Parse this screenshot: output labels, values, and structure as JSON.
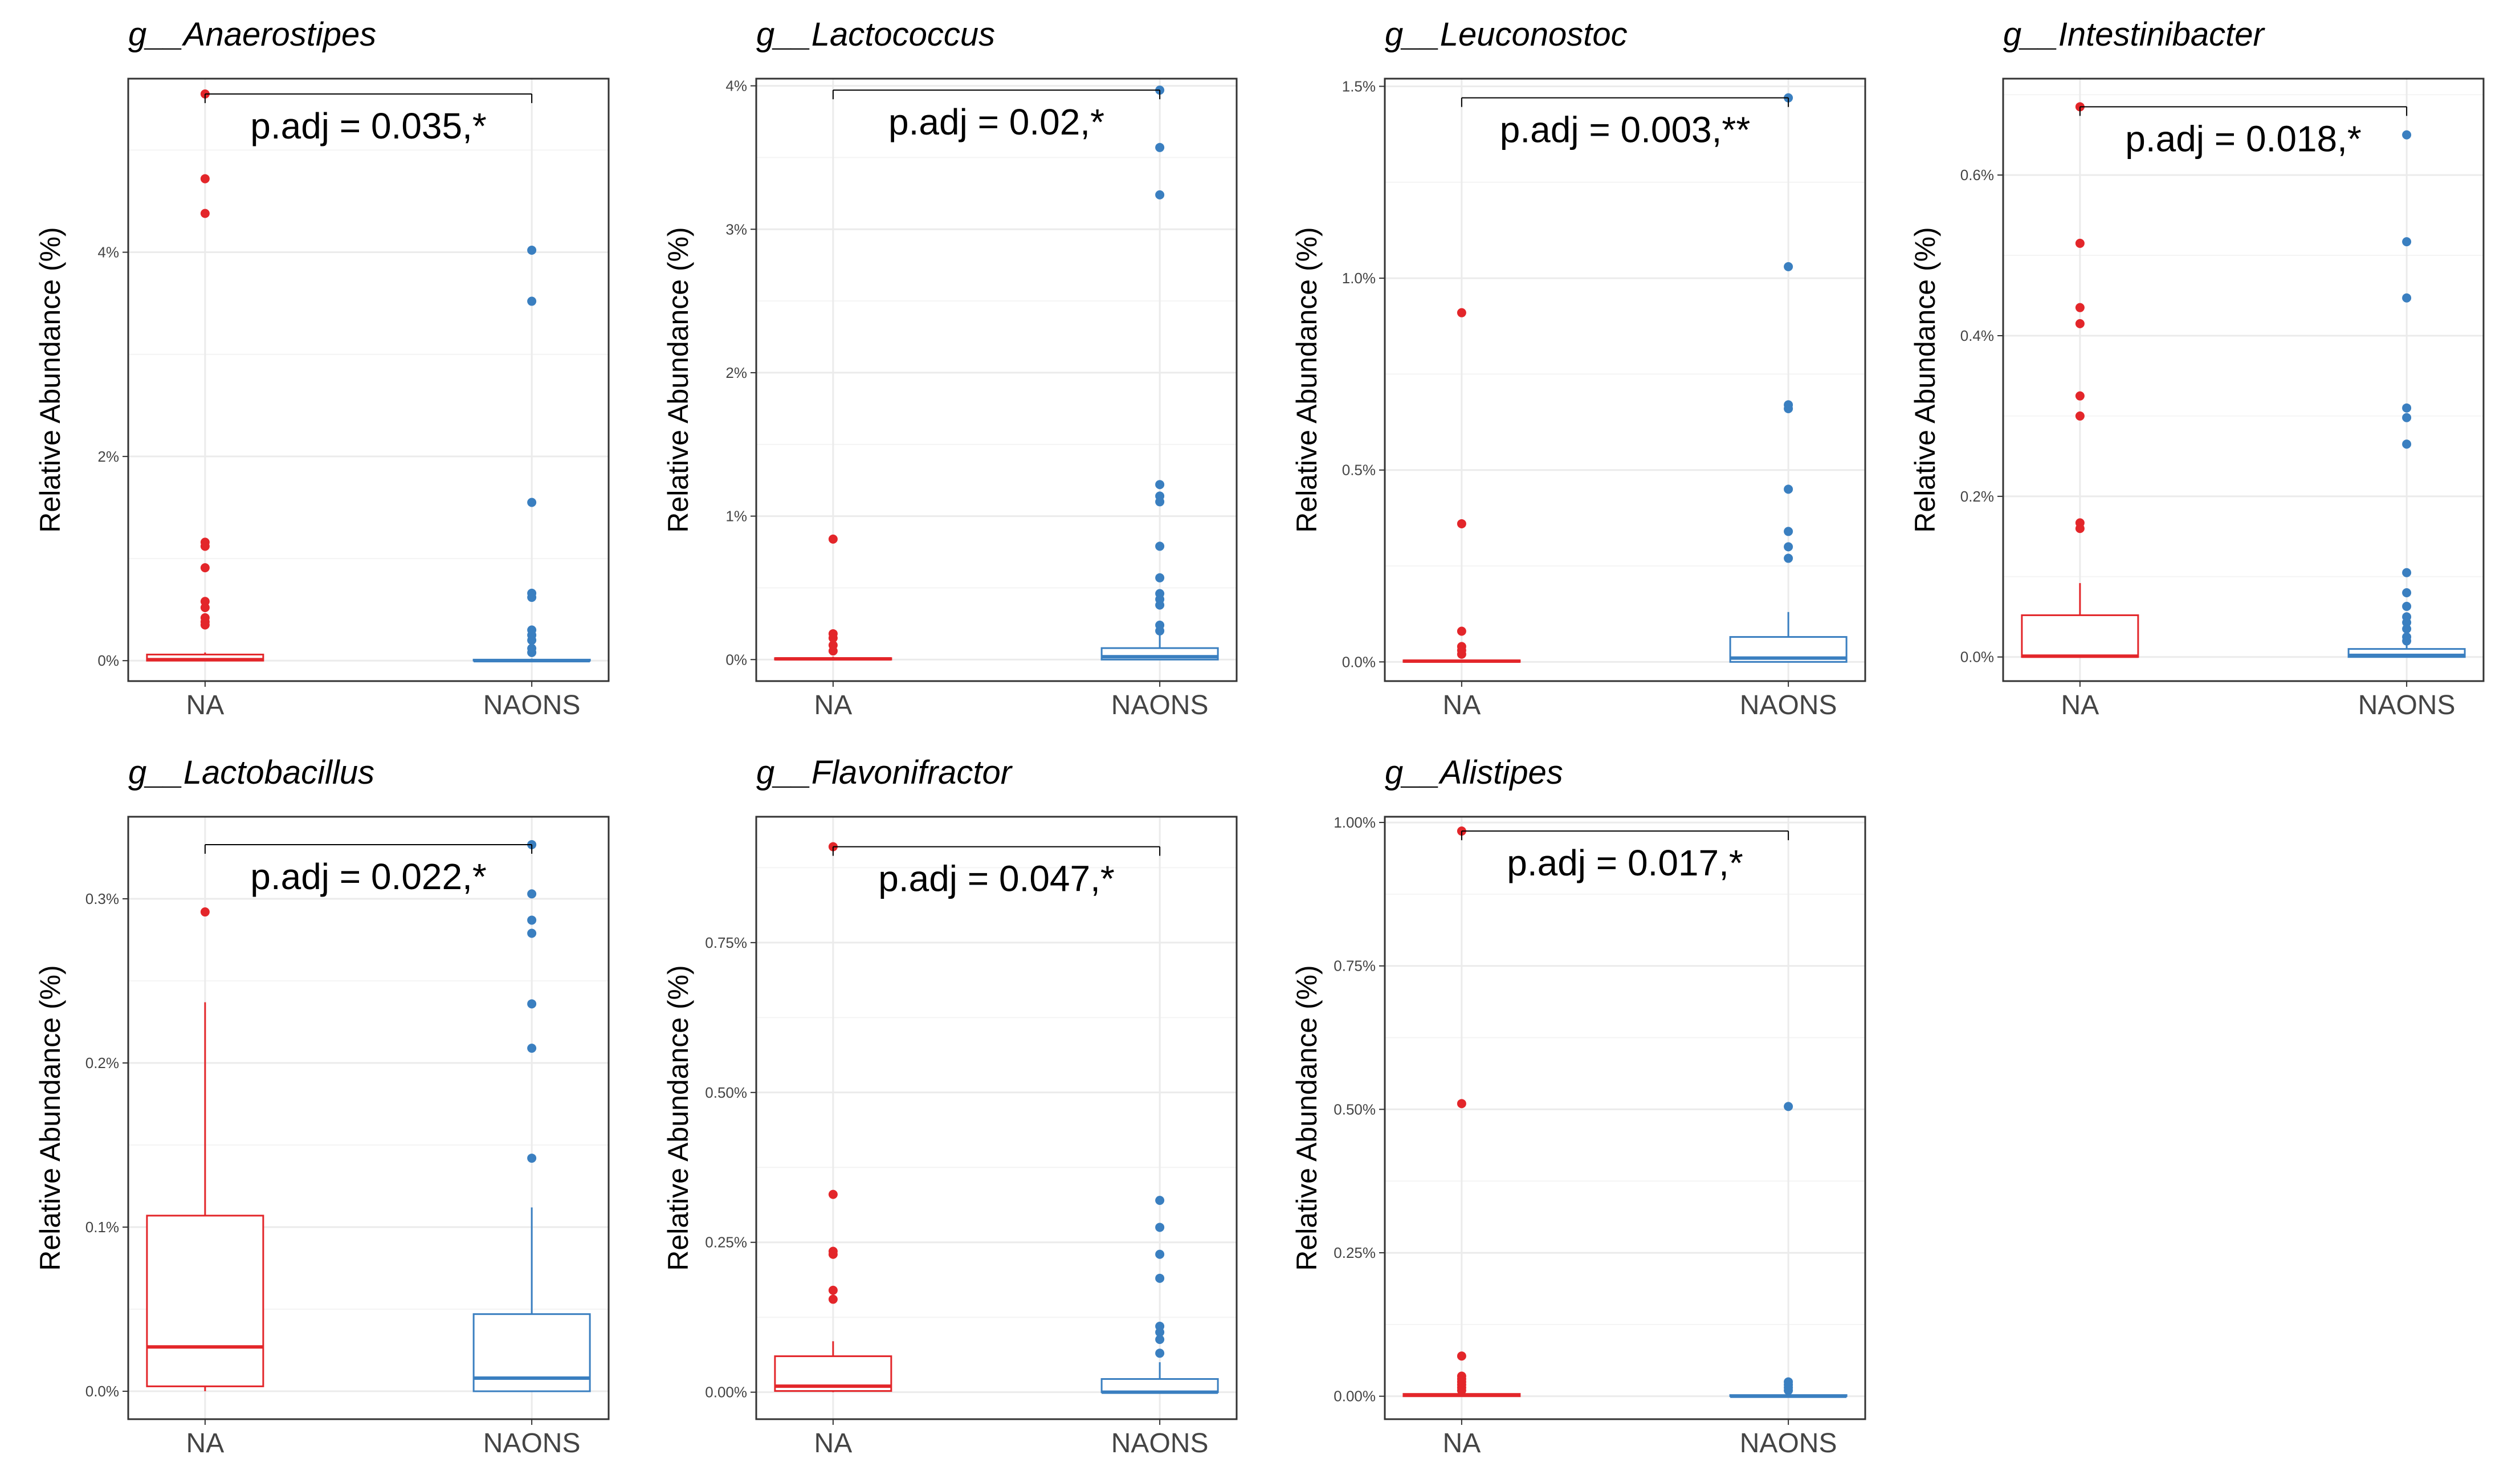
{
  "colors": {
    "NA": "#e3262a",
    "NAONS": "#3a7fc0",
    "grid": "#ebebeb",
    "frame": "#333333"
  },
  "chart_data": [
    {
      "type": "boxplot",
      "title": "g__Anaerostipes",
      "ylabel": "Relative Abundance (%)",
      "categories": [
        "NA",
        "NAONS"
      ],
      "ylim": [
        -0.2,
        5.7
      ],
      "yticks": [
        0,
        2,
        4
      ],
      "yticklabels": [
        "0%",
        "2%",
        "4%"
      ],
      "annotation": "p.adj = 0.035,*",
      "bracket_y": 5.55,
      "groups": [
        {
          "name": "NA",
          "q1": 0.0,
          "median": 0.01,
          "q3": 0.06,
          "whisker_low": 0.0,
          "whisker_high": 0.08,
          "outliers": [
            5.55,
            4.72,
            4.38,
            1.16,
            1.12,
            0.91,
            0.58,
            0.52,
            0.42,
            0.38,
            0.35
          ]
        },
        {
          "name": "NAONS",
          "q1": 0.0,
          "median": 0.0,
          "q3": 0.01,
          "whisker_low": 0.0,
          "whisker_high": 0.02,
          "outliers": [
            4.02,
            3.52,
            1.55,
            0.66,
            0.62,
            0.3,
            0.25,
            0.2,
            0.12,
            0.08
          ]
        }
      ]
    },
    {
      "type": "boxplot",
      "title": "g__Lactococcus",
      "ylabel": "Relative Abundance (%)",
      "categories": [
        "NA",
        "NAONS"
      ],
      "ylim": [
        -0.15,
        4.05
      ],
      "yticks": [
        0,
        1,
        2,
        3,
        4
      ],
      "yticklabels": [
        "0%",
        "1%",
        "2%",
        "3%",
        "4%"
      ],
      "annotation": "p.adj = 0.02,*",
      "bracket_y": 3.97,
      "groups": [
        {
          "name": "NA",
          "q1": 0.0,
          "median": 0.005,
          "q3": 0.01,
          "whisker_low": 0.0,
          "whisker_high": 0.02,
          "outliers": [
            0.84,
            0.18,
            0.15,
            0.1,
            0.06
          ]
        },
        {
          "name": "NAONS",
          "q1": 0.0,
          "median": 0.02,
          "q3": 0.08,
          "whisker_low": 0.0,
          "whisker_high": 0.2,
          "outliers": [
            3.97,
            3.57,
            3.24,
            1.22,
            1.14,
            1.1,
            0.79,
            0.57,
            0.46,
            0.42,
            0.38,
            0.24,
            0.2
          ]
        }
      ]
    },
    {
      "type": "boxplot",
      "title": "g__Leuconostoc",
      "ylabel": "Relative Abundance (%)",
      "categories": [
        "NA",
        "NAONS"
      ],
      "ylim": [
        -0.05,
        1.52
      ],
      "yticks": [
        0,
        0.5,
        1.0,
        1.5
      ],
      "yticklabels": [
        "0.0%",
        "0.5%",
        "1.0%",
        "1.5%"
      ],
      "annotation": "p.adj = 0.003,**",
      "bracket_y": 1.47,
      "groups": [
        {
          "name": "NA",
          "q1": 0.0,
          "median": 0.002,
          "q3": 0.004,
          "whisker_low": 0.0,
          "whisker_high": 0.006,
          "outliers": [
            0.91,
            0.36,
            0.08,
            0.04,
            0.03,
            0.02
          ]
        },
        {
          "name": "NAONS",
          "q1": 0.0,
          "median": 0.01,
          "q3": 0.065,
          "whisker_low": 0.0,
          "whisker_high": 0.13,
          "outliers": [
            1.47,
            1.03,
            0.67,
            0.66,
            0.45,
            0.34,
            0.3,
            0.27
          ]
        }
      ]
    },
    {
      "type": "boxplot",
      "title": "g__Intestinibacter",
      "ylabel": "Relative Abundance (%)",
      "categories": [
        "NA",
        "NAONS"
      ],
      "ylim": [
        -0.03,
        0.72
      ],
      "yticks": [
        0,
        0.2,
        0.4,
        0.6
      ],
      "yticklabels": [
        "0.0%",
        "0.2%",
        "0.4%",
        "0.6%"
      ],
      "annotation": "p.adj = 0.018,*",
      "bracket_y": 0.685,
      "groups": [
        {
          "name": "NA",
          "q1": 0.0,
          "median": 0.001,
          "q3": 0.052,
          "whisker_low": 0.0,
          "whisker_high": 0.092,
          "outliers": [
            0.685,
            0.515,
            0.435,
            0.415,
            0.325,
            0.3,
            0.167,
            0.16
          ]
        },
        {
          "name": "NAONS",
          "q1": 0.0,
          "median": 0.002,
          "q3": 0.01,
          "whisker_low": 0.0,
          "whisker_high": 0.015,
          "outliers": [
            0.65,
            0.517,
            0.447,
            0.31,
            0.298,
            0.265,
            0.105,
            0.08,
            0.063,
            0.05,
            0.043,
            0.035,
            0.025,
            0.02
          ]
        }
      ]
    },
    {
      "type": "boxplot",
      "title": "g__Lactobacillus",
      "ylabel": "Relative Abundance (%)",
      "categories": [
        "NA",
        "NAONS"
      ],
      "ylim": [
        -0.017,
        0.35
      ],
      "yticks": [
        0,
        0.1,
        0.2,
        0.3
      ],
      "yticklabels": [
        "0.0%",
        "0.1%",
        "0.2%",
        "0.3%"
      ],
      "annotation": "p.adj = 0.022,*",
      "bracket_y": 0.333,
      "groups": [
        {
          "name": "NA",
          "q1": 0.003,
          "median": 0.027,
          "q3": 0.107,
          "whisker_low": 0.0,
          "whisker_high": 0.237,
          "outliers": [
            0.292
          ]
        },
        {
          "name": "NAONS",
          "q1": 0.0,
          "median": 0.008,
          "q3": 0.047,
          "whisker_low": 0.0,
          "whisker_high": 0.112,
          "outliers": [
            0.333,
            0.303,
            0.287,
            0.279,
            0.236,
            0.209,
            0.142
          ]
        }
      ]
    },
    {
      "type": "boxplot",
      "title": "g__Flavonifractor",
      "ylabel": "Relative Abundance (%)",
      "categories": [
        "NA",
        "NAONS"
      ],
      "ylim": [
        -0.045,
        0.96
      ],
      "yticks": [
        0,
        0.25,
        0.5,
        0.75
      ],
      "yticklabels": [
        "0.00%",
        "0.25%",
        "0.50%",
        "0.75%"
      ],
      "annotation": "p.adj = 0.047,*",
      "bracket_y": 0.91,
      "groups": [
        {
          "name": "NA",
          "q1": 0.002,
          "median": 0.01,
          "q3": 0.06,
          "whisker_low": 0.0,
          "whisker_high": 0.085,
          "outliers": [
            0.91,
            0.33,
            0.235,
            0.23,
            0.17,
            0.155
          ]
        },
        {
          "name": "NAONS",
          "q1": 0.0,
          "median": 0.0,
          "q3": 0.022,
          "whisker_low": 0.0,
          "whisker_high": 0.05,
          "outliers": [
            0.32,
            0.275,
            0.23,
            0.19,
            0.11,
            0.1,
            0.088,
            0.065
          ]
        }
      ]
    },
    {
      "type": "boxplot",
      "title": "g__Alistipes",
      "ylabel": "Relative Abundance (%)",
      "categories": [
        "NA",
        "NAONS"
      ],
      "ylim": [
        -0.04,
        1.01
      ],
      "yticks": [
        0,
        0.25,
        0.5,
        0.75,
        1.0
      ],
      "yticklabels": [
        "0.00%",
        "0.25%",
        "0.50%",
        "0.75%",
        "1.00%"
      ],
      "annotation": "p.adj = 0.017,*",
      "bracket_y": 0.985,
      "groups": [
        {
          "name": "NA",
          "q1": 0.0,
          "median": 0.002,
          "q3": 0.004,
          "whisker_low": 0.0,
          "whisker_high": 0.006,
          "outliers": [
            0.985,
            0.51,
            0.07,
            0.035,
            0.03,
            0.025,
            0.02,
            0.015,
            0.01
          ]
        },
        {
          "name": "NAONS",
          "q1": 0.0,
          "median": 0.0,
          "q3": 0.002,
          "whisker_low": 0.0,
          "whisker_high": 0.003,
          "outliers": [
            0.505,
            0.025,
            0.02,
            0.015,
            0.01
          ]
        }
      ]
    }
  ]
}
